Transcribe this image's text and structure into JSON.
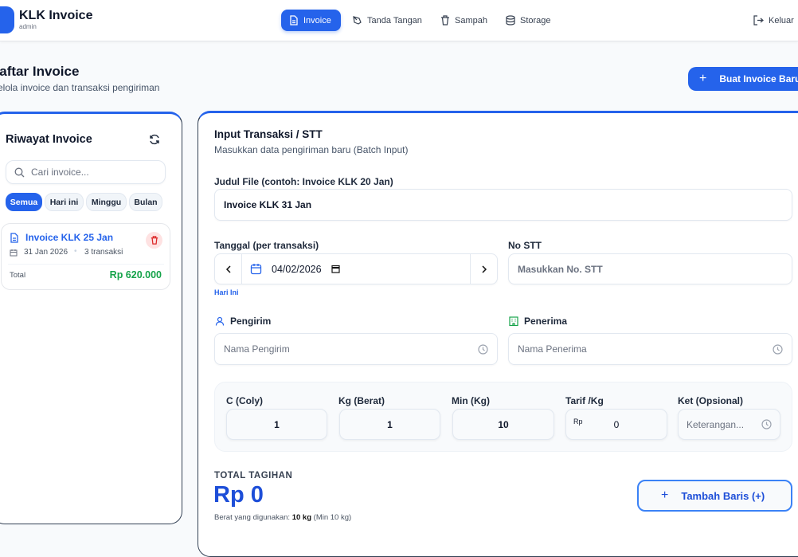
{
  "header": {
    "app_title": "KLK Invoice",
    "user_role": "admin",
    "nav": [
      {
        "label": "Invoice",
        "icon": "file-text-icon",
        "active": true
      },
      {
        "label": "Tanda Tangan",
        "icon": "signature-icon"
      },
      {
        "label": "Sampah",
        "icon": "trash-icon"
      },
      {
        "label": "Storage",
        "icon": "database-icon"
      }
    ],
    "logout_label": "Keluar"
  },
  "page": {
    "title": "Daftar Invoice",
    "subtitle": "Kelola invoice dan transaksi pengiriman",
    "create_button": "Buat Invoice Baru"
  },
  "sidebar": {
    "title": "Riwayat Invoice",
    "search_placeholder": "Cari invoice...",
    "filters": [
      {
        "label": "Semua",
        "active": true
      },
      {
        "label": "Hari ini"
      },
      {
        "label": "Minggu"
      },
      {
        "label": "Bulan"
      }
    ],
    "invoices": [
      {
        "title": "Invoice KLK 25 Jan",
        "date": "31 Jan 2026",
        "transactions": "3 transaksi",
        "total_label": "Total",
        "total": "Rp 620.000"
      }
    ]
  },
  "form": {
    "title": "Input Transaksi / STT",
    "subtitle": "Masukkan data pengiriman baru (Batch Input)",
    "file_title_label": "Judul File (contoh: Invoice KLK 20 Jan)",
    "file_title_value": "Invoice KLK 31 Jan",
    "date_label": "Tanggal (per transaksi)",
    "date_value": "04/02/2026",
    "today_link": "Hari Ini",
    "stt_label": "No STT",
    "stt_placeholder": "Masukkan No. STT",
    "sender_label": "Pengirim",
    "sender_placeholder": "Nama Pengirim",
    "receiver_label": "Penerima",
    "receiver_placeholder": "Nama Penerima",
    "coly_label": "C (Coly)",
    "coly_value": "1",
    "kg_label": "Kg (Berat)",
    "kg_value": "1",
    "min_label": "Min (Kg)",
    "min_value": "10",
    "tarif_label": "Tarif /Kg",
    "tarif_prefix": "Rp",
    "tarif_value": "0",
    "ket_label": "Ket (Opsional)",
    "ket_placeholder": "Keterangan...",
    "total_label": "TOTAL TAGIHAN",
    "total_value": "Rp 0",
    "weight_prefix": "Berat yang digunakan:",
    "weight_value": "10 kg",
    "weight_min": "(Min 10 kg)",
    "add_row_button": "Tambah Baris (+)"
  },
  "colors": {
    "accent": "#2563eb",
    "success": "#16a34a",
    "danger": "#dc2626"
  }
}
